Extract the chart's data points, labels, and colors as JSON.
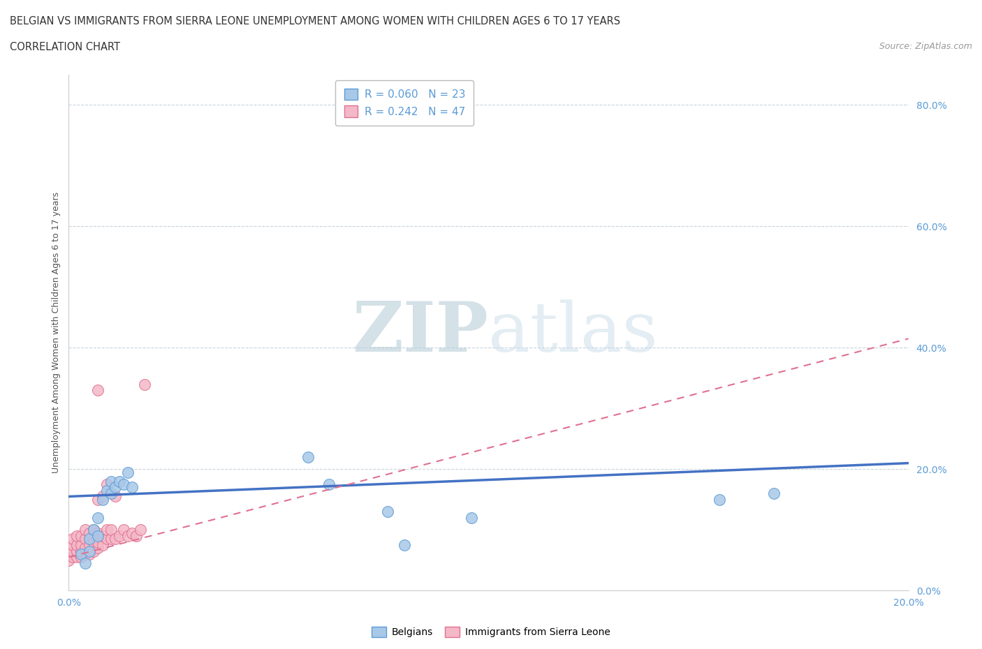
{
  "title_line1": "BELGIAN VS IMMIGRANTS FROM SIERRA LEONE UNEMPLOYMENT AMONG WOMEN WITH CHILDREN AGES 6 TO 17 YEARS",
  "title_line2": "CORRELATION CHART",
  "source": "Source: ZipAtlas.com",
  "ylabel": "Unemployment Among Women with Children Ages 6 to 17 years",
  "xlim": [
    0.0,
    0.2
  ],
  "ylim": [
    0.0,
    0.85
  ],
  "yticks": [
    0.0,
    0.2,
    0.4,
    0.6,
    0.8
  ],
  "ytick_labels": [
    "0.0%",
    "20.0%",
    "40.0%",
    "60.0%",
    "80.0%"
  ],
  "xticks": [
    0.0,
    0.04,
    0.08,
    0.12,
    0.16,
    0.2
  ],
  "xtick_labels": [
    "0.0%",
    "",
    "",
    "",
    "",
    "20.0%"
  ],
  "belgian_R": 0.06,
  "belgian_N": 23,
  "sierra_leone_R": 0.242,
  "sierra_leone_N": 47,
  "belgian_color": "#a8c8e8",
  "belgian_edge_color": "#5b9bd5",
  "sierra_leone_color": "#f4b8c8",
  "sierra_leone_edge_color": "#e07090",
  "belgian_line_color": "#4472c4",
  "sierra_leone_line_color": "#e07090",
  "watermark_zip": "ZIP",
  "watermark_atlas": "atlas",
  "watermark_color": "#ccdde8",
  "background_color": "#ffffff",
  "grid_color": "#c8d4dc",
  "belgians_x": [
    0.003,
    0.004,
    0.005,
    0.005,
    0.006,
    0.007,
    0.007,
    0.008,
    0.009,
    0.01,
    0.01,
    0.011,
    0.012,
    0.013,
    0.014,
    0.015,
    0.057,
    0.062,
    0.076,
    0.08,
    0.096,
    0.155,
    0.168
  ],
  "belgians_y": [
    0.06,
    0.045,
    0.085,
    0.065,
    0.1,
    0.09,
    0.12,
    0.15,
    0.165,
    0.16,
    0.18,
    0.17,
    0.18,
    0.175,
    0.195,
    0.17,
    0.22,
    0.175,
    0.13,
    0.075,
    0.12,
    0.15,
    0.16
  ],
  "sierra_leone_x": [
    0.0,
    0.0,
    0.0,
    0.001,
    0.001,
    0.001,
    0.001,
    0.002,
    0.002,
    0.002,
    0.002,
    0.003,
    0.003,
    0.003,
    0.003,
    0.004,
    0.004,
    0.004,
    0.004,
    0.005,
    0.005,
    0.005,
    0.006,
    0.006,
    0.006,
    0.007,
    0.007,
    0.007,
    0.007,
    0.007,
    0.008,
    0.008,
    0.008,
    0.009,
    0.009,
    0.009,
    0.01,
    0.01,
    0.011,
    0.011,
    0.012,
    0.013,
    0.014,
    0.015,
    0.016,
    0.017,
    0.018
  ],
  "sierra_leone_y": [
    0.05,
    0.06,
    0.07,
    0.055,
    0.065,
    0.075,
    0.085,
    0.055,
    0.065,
    0.075,
    0.09,
    0.055,
    0.065,
    0.075,
    0.09,
    0.06,
    0.07,
    0.085,
    0.1,
    0.06,
    0.075,
    0.095,
    0.065,
    0.08,
    0.1,
    0.07,
    0.08,
    0.095,
    0.15,
    0.33,
    0.075,
    0.09,
    0.155,
    0.085,
    0.1,
    0.175,
    0.085,
    0.1,
    0.085,
    0.155,
    0.09,
    0.1,
    0.09,
    0.095,
    0.09,
    0.1,
    0.34
  ],
  "sl_line_x0": 0.0,
  "sl_line_y0": 0.055,
  "sl_line_x1": 0.2,
  "sl_line_y1": 0.415,
  "be_line_x0": 0.0,
  "be_line_y0": 0.155,
  "be_line_x1": 0.2,
  "be_line_y1": 0.21
}
